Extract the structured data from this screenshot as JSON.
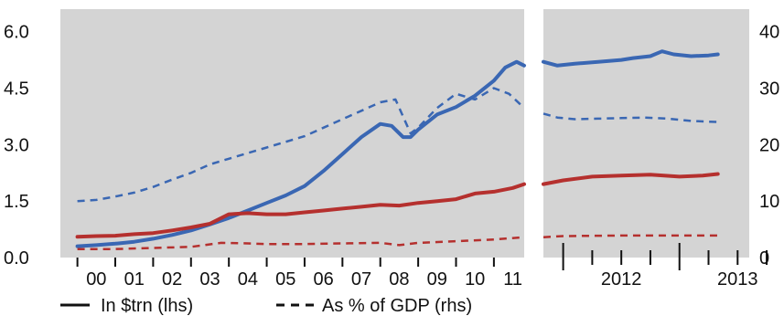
{
  "chart_data": {
    "type": "line",
    "colors": {
      "blue": "#3a67b3",
      "red": "#b5302e",
      "panel_bg": "#d4d4d4"
    },
    "left_panel": {
      "x_tick_labels": [
        "00",
        "01",
        "02",
        "03",
        "04",
        "05",
        "06",
        "07",
        "08",
        "09",
        "10",
        "11"
      ],
      "y_left_ticks": [
        "6.0",
        "4.5",
        "3.0",
        "1.5",
        "0.0"
      ],
      "series": [
        {
          "name": "In $trn (lhs)",
          "color": "blue",
          "dash": "solid",
          "axis": "lhs",
          "x": [
            2000.0,
            2000.5,
            2001.0,
            2001.5,
            2002.0,
            2002.5,
            2003.0,
            2003.5,
            2004.0,
            2004.5,
            2005.0,
            2005.5,
            2006.0,
            2006.5,
            2007.0,
            2007.5,
            2008.0,
            2008.3,
            2008.6,
            2008.8,
            2009.0,
            2009.5,
            2010.0,
            2010.5,
            2011.0,
            2011.3,
            2011.6,
            2011.8
          ],
          "y": [
            0.3,
            0.33,
            0.37,
            0.42,
            0.5,
            0.6,
            0.72,
            0.88,
            1.05,
            1.25,
            1.45,
            1.65,
            1.9,
            2.3,
            2.75,
            3.2,
            3.55,
            3.5,
            3.2,
            3.2,
            3.4,
            3.8,
            4.0,
            4.3,
            4.7,
            5.05,
            5.2,
            5.1
          ]
        },
        {
          "name": "In $trn (lhs)",
          "color": "red",
          "dash": "solid",
          "axis": "lhs",
          "x": [
            2000.0,
            2000.5,
            2001.0,
            2001.5,
            2002.0,
            2002.5,
            2003.0,
            2003.5,
            2004.0,
            2004.5,
            2005.0,
            2005.5,
            2006.0,
            2006.5,
            2007.0,
            2007.5,
            2008.0,
            2008.5,
            2009.0,
            2009.5,
            2010.0,
            2010.5,
            2011.0,
            2011.5,
            2011.8
          ],
          "y": [
            0.55,
            0.57,
            0.58,
            0.62,
            0.65,
            0.72,
            0.8,
            0.9,
            1.15,
            1.18,
            1.15,
            1.15,
            1.2,
            1.25,
            1.3,
            1.35,
            1.4,
            1.38,
            1.45,
            1.5,
            1.55,
            1.7,
            1.75,
            1.85,
            1.95
          ]
        },
        {
          "name": "As % of GDP (rhs)",
          "color": "blue",
          "dash": "dashed",
          "axis": "rhs",
          "x": [
            2000.0,
            2000.5,
            2001.0,
            2001.5,
            2002.0,
            2002.5,
            2003.0,
            2003.5,
            2004.0,
            2004.5,
            2005.0,
            2005.5,
            2006.0,
            2006.5,
            2007.0,
            2007.5,
            2008.0,
            2008.4,
            2008.8,
            2009.0,
            2009.5,
            2010.0,
            2010.5,
            2011.0,
            2011.4,
            2011.8
          ],
          "y": [
            10.0,
            10.2,
            10.8,
            11.5,
            12.5,
            13.8,
            15.0,
            16.5,
            17.5,
            18.5,
            19.5,
            20.5,
            21.5,
            23.0,
            24.5,
            26.0,
            27.5,
            28.0,
            22.0,
            23.0,
            26.5,
            29.0,
            28.0,
            30.0,
            29.0,
            26.5
          ]
        },
        {
          "name": "As % of GDP (rhs)",
          "color": "red",
          "dash": "dashed",
          "axis": "rhs",
          "x": [
            2000.0,
            2001.0,
            2002.0,
            2003.0,
            2003.8,
            2004.5,
            2005.0,
            2006.0,
            2007.0,
            2008.0,
            2008.5,
            2009.0,
            2010.0,
            2011.0,
            2011.8
          ],
          "y": [
            1.5,
            1.5,
            1.7,
            1.9,
            2.6,
            2.5,
            2.4,
            2.4,
            2.5,
            2.6,
            2.2,
            2.6,
            2.9,
            3.2,
            3.6
          ]
        }
      ]
    },
    "right_panel": {
      "x_tick_labels": [
        "2012",
        "2013"
      ],
      "y_right_ticks": [
        "40",
        "30",
        "20",
        "10",
        "0"
      ],
      "series": [
        {
          "name": "In $trn (lhs)",
          "color": "blue",
          "dash": "solid",
          "axis": "lhs",
          "x": [
            2011.83,
            2011.95,
            2012.1,
            2012.3,
            2012.5,
            2012.6,
            2012.75,
            2012.85,
            2012.95,
            2013.1,
            2013.25,
            2013.33
          ],
          "y": [
            5.2,
            5.1,
            5.15,
            5.2,
            5.25,
            5.3,
            5.35,
            5.48,
            5.4,
            5.35,
            5.37,
            5.4
          ]
        },
        {
          "name": "In $trn (lhs)",
          "color": "red",
          "dash": "solid",
          "axis": "lhs",
          "x": [
            2011.83,
            2012.0,
            2012.25,
            2012.5,
            2012.75,
            2013.0,
            2013.2,
            2013.33
          ],
          "y": [
            1.95,
            2.05,
            2.15,
            2.18,
            2.2,
            2.15,
            2.18,
            2.22
          ]
        },
        {
          "name": "As % of GDP (rhs)",
          "color": "blue",
          "dash": "dashed",
          "axis": "rhs",
          "x": [
            2011.83,
            2011.95,
            2012.1,
            2012.3,
            2012.5,
            2012.7,
            2012.9,
            2013.1,
            2013.33
          ],
          "y": [
            25.5,
            24.8,
            24.5,
            24.6,
            24.7,
            24.8,
            24.6,
            24.2,
            24.0
          ]
        },
        {
          "name": "As % of GDP (rhs)",
          "color": "red",
          "dash": "dashed",
          "axis": "rhs",
          "x": [
            2011.83,
            2012.0,
            2012.5,
            2013.0,
            2013.33
          ],
          "y": [
            3.6,
            3.8,
            3.9,
            3.9,
            3.9
          ]
        }
      ]
    },
    "y_left_range": [
      0,
      6.6
    ],
    "y_right_range": [
      0,
      44
    ],
    "x_left_range": [
      1999.55,
      2011.8
    ],
    "x_right_range": [
      2011.83,
      2013.6
    ],
    "legend": {
      "position": "bottom-left",
      "items": [
        {
          "label": "In $trn (lhs)",
          "dash": "solid"
        },
        {
          "label": "As % of GDP (rhs)",
          "dash": "dashed"
        }
      ]
    },
    "grid": false
  }
}
